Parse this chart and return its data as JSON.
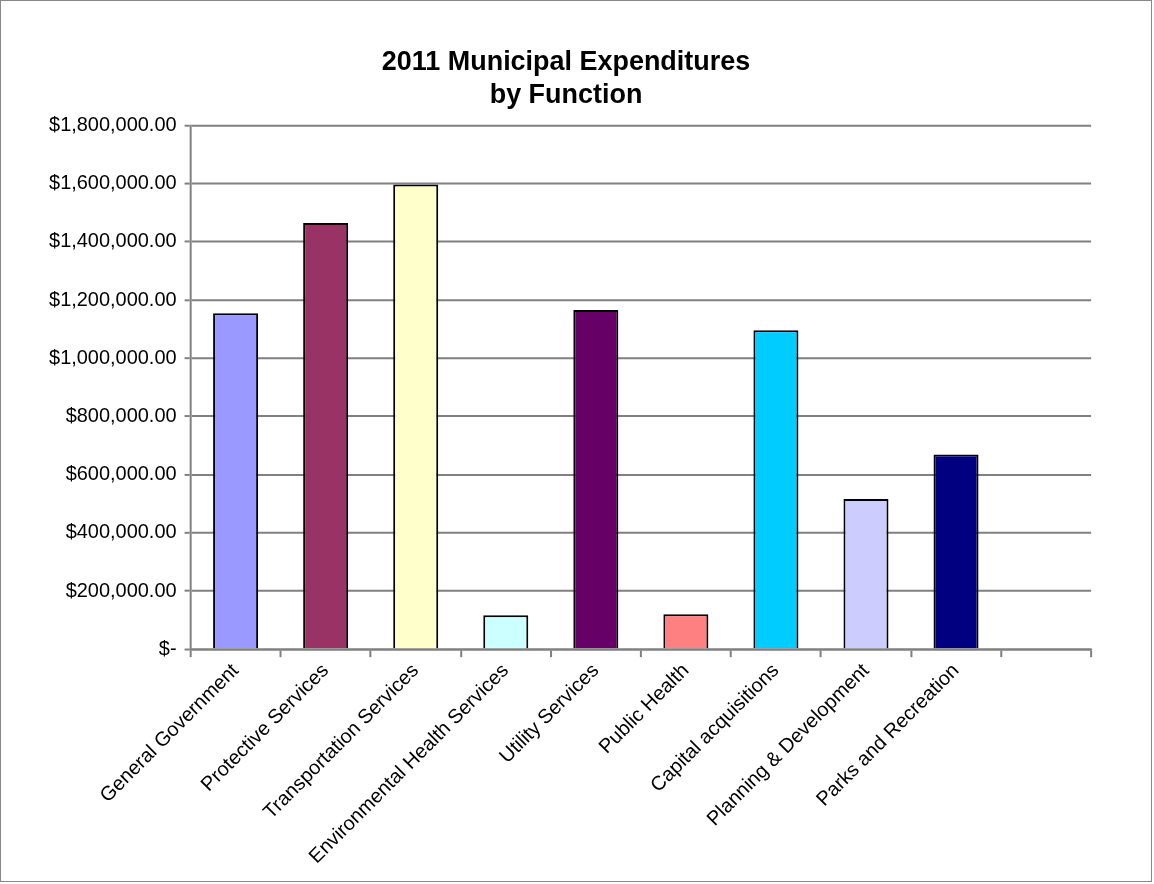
{
  "chart_data": {
    "type": "bar",
    "title": "2011 Municipal Expenditures\nby Function",
    "categories": [
      "General Government",
      "Protective Services",
      "Transportation Services",
      "Environmental Health Services",
      "Utility Services",
      "Public Health",
      "Capital acquisitions",
      "Planning & Development",
      "Parks and Recreation",
      null
    ],
    "values": [
      1155000,
      1465000,
      1597000,
      117000,
      1166000,
      120000,
      1096000,
      516000,
      669000,
      null
    ],
    "colors": [
      "#9999ff",
      "#993366",
      "#ffffcc",
      "#ccffff",
      "#660066",
      "#ff8080",
      "#00ccff",
      "#ccccff",
      "#000080",
      "#ffffff"
    ],
    "ylim": [
      0,
      1800000
    ],
    "yticks": [
      {
        "value": 0,
        "label": "$-"
      },
      {
        "value": 200000,
        "label": "$200,000.00"
      },
      {
        "value": 400000,
        "label": "$400,000.00"
      },
      {
        "value": 600000,
        "label": "$600,000.00"
      },
      {
        "value": 800000,
        "label": "$800,000.00"
      },
      {
        "value": 1000000,
        "label": "$1,000,000.00"
      },
      {
        "value": 1200000,
        "label": "$1,200,000.00"
      },
      {
        "value": 1400000,
        "label": "$1,400,000.00"
      },
      {
        "value": 1600000,
        "label": "$1,600,000.00"
      },
      {
        "value": 1800000,
        "label": "$1,800,000.00"
      }
    ],
    "grid": "y",
    "legend": false
  }
}
